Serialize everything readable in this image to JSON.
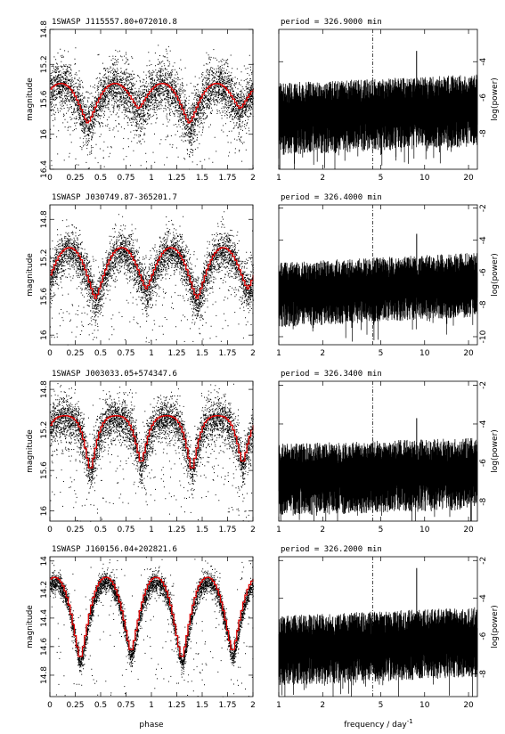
{
  "figure": {
    "bottom_left_xlabel": "phase",
    "bottom_right_xlabel": "frequency / day",
    "bottom_right_xlabel_sup": "-1"
  },
  "chart_data": [
    {
      "type": "scatter",
      "title": "1SWASP J115557.80+072010.8",
      "ylabel": "magnitude",
      "xlim": [
        0,
        2
      ],
      "ylim": [
        16.4,
        14.8
      ],
      "y_inverted": true,
      "x_ticks": [
        "0",
        "0.25",
        "0.5",
        "0.75",
        "1",
        "1.25",
        "1.5",
        "1.75",
        "2"
      ],
      "y_ticks": [
        {
          "v": 14.8,
          "t": "14.8"
        },
        {
          "v": 15.2,
          "t": "15.2"
        },
        {
          "v": 15.6,
          "t": "15.6"
        },
        {
          "v": 16,
          "t": "16"
        },
        {
          "v": 16.4,
          "t": "16.4"
        }
      ],
      "series": [
        {
          "kind": "points",
          "color": "#000000",
          "shape": {
            "baseline": 15.35,
            "depth1": 0.55,
            "depth2": 0.38,
            "width": 0.14,
            "scatter": 0.28,
            "min_phase": 0.375
          }
        },
        {
          "kind": "binned_mean",
          "color": "#e00000",
          "step": 0.02
        }
      ]
    },
    {
      "type": "line",
      "title": "period = 326.9000 min",
      "ylabel": "log(power)",
      "x_scale": "log",
      "xlim": [
        1,
        23
      ],
      "ylim": [
        -10,
        -2.2
      ],
      "x_ticks": [
        {
          "v": 1,
          "t": "1"
        },
        {
          "v": 2,
          "t": "2"
        },
        {
          "v": 5,
          "t": "5"
        },
        {
          "v": 10,
          "t": "10"
        },
        {
          "v": 20,
          "t": "20"
        }
      ],
      "y_ticks": [
        {
          "v": -4,
          "t": "-4"
        },
        {
          "v": -6,
          "t": "-6"
        },
        {
          "v": -8,
          "t": "-8"
        }
      ],
      "marker_frequency": 4.405,
      "peak_frequency": 8.81,
      "peak_power": -3.4,
      "noise": {
        "level": -7.0,
        "spread": 1.3,
        "trend": 0.15
      }
    },
    {
      "type": "scatter",
      "title": "1SWASP J030749.87-365201.7",
      "ylabel": "magnitude",
      "xlim": [
        0,
        2
      ],
      "ylim": [
        16.1,
        14.65
      ],
      "y_inverted": true,
      "x_ticks": [
        "0",
        "0.25",
        "0.5",
        "0.75",
        "1",
        "1.25",
        "1.5",
        "1.75",
        "2"
      ],
      "y_ticks": [
        {
          "v": 14.8,
          "t": "14.8"
        },
        {
          "v": 15.2,
          "t": "15.2"
        },
        {
          "v": 15.6,
          "t": "15.6"
        },
        {
          "v": 16,
          "t": "16"
        }
      ],
      "series": [
        {
          "kind": "points",
          "color": "#000000",
          "shape": {
            "baseline": 15.0,
            "depth1": 0.65,
            "depth2": 0.55,
            "width": 0.14,
            "scatter": 0.22,
            "min_phase": 0.45
          }
        },
        {
          "kind": "binned_mean",
          "color": "#e00000",
          "step": 0.02
        }
      ]
    },
    {
      "type": "line",
      "title": "period = 326.4000 min",
      "ylabel": "log(power)",
      "x_scale": "log",
      "xlim": [
        1,
        23
      ],
      "ylim": [
        -10.5,
        -1.8
      ],
      "x_ticks": [
        {
          "v": 1,
          "t": "1"
        },
        {
          "v": 2,
          "t": "2"
        },
        {
          "v": 5,
          "t": "5"
        },
        {
          "v": 10,
          "t": "10"
        },
        {
          "v": 20,
          "t": "20"
        }
      ],
      "y_ticks": [
        {
          "v": -2,
          "t": "-2"
        },
        {
          "v": -4,
          "t": "-4"
        },
        {
          "v": -6,
          "t": "-6"
        },
        {
          "v": -8,
          "t": "-8"
        },
        {
          "v": -10,
          "t": "-10"
        }
      ],
      "marker_frequency": 4.41,
      "peak_frequency": 8.82,
      "peak_power": -3.6,
      "noise": {
        "level": -7.2,
        "spread": 1.3,
        "trend": 0.2
      }
    },
    {
      "type": "scatter",
      "title": "1SWASP J003033.05+574347.6",
      "ylabel": "magnitude",
      "xlim": [
        0,
        2
      ],
      "ylim": [
        16.1,
        14.72
      ],
      "y_inverted": true,
      "x_ticks": [
        "0",
        "0.25",
        "0.5",
        "0.75",
        "1",
        "1.25",
        "1.5",
        "1.75",
        "2"
      ],
      "y_ticks": [
        {
          "v": 14.8,
          "t": "14.8"
        },
        {
          "v": 15.2,
          "t": "15.2"
        },
        {
          "v": 15.6,
          "t": "15.6"
        },
        {
          "v": 16,
          "t": "16"
        }
      ],
      "series": [
        {
          "kind": "points",
          "color": "#000000",
          "shape": {
            "baseline": 15.08,
            "depth1": 0.55,
            "depth2": 0.48,
            "width": 0.08,
            "scatter": 0.2,
            "min_phase": 0.4
          }
        },
        {
          "kind": "binned_mean",
          "color": "#e00000",
          "step": 0.02
        }
      ]
    },
    {
      "type": "line",
      "title": "period = 326.3400 min",
      "ylabel": "log(power)",
      "x_scale": "log",
      "xlim": [
        1,
        23
      ],
      "ylim": [
        -9,
        -1.8
      ],
      "x_ticks": [
        {
          "v": 1,
          "t": "1"
        },
        {
          "v": 2,
          "t": "2"
        },
        {
          "v": 5,
          "t": "5"
        },
        {
          "v": 10,
          "t": "10"
        },
        {
          "v": 20,
          "t": "20"
        }
      ],
      "y_ticks": [
        {
          "v": -2,
          "t": "-2"
        },
        {
          "v": -4,
          "t": "-4"
        },
        {
          "v": -6,
          "t": "-6"
        },
        {
          "v": -8,
          "t": "-8"
        }
      ],
      "marker_frequency": 4.41,
      "peak_frequency": 8.82,
      "peak_power": -3.7,
      "noise": {
        "level": -6.7,
        "spread": 1.2,
        "trend": 0.1
      }
    },
    {
      "type": "scatter",
      "title": "1SWASP J160156.04+202821.6",
      "ylabel": "magnitude",
      "xlim": [
        0,
        2
      ],
      "ylim": [
        14.95,
        13.97
      ],
      "y_inverted": true,
      "x_ticks": [
        "0",
        "0.25",
        "0.5",
        "0.75",
        "1",
        "1.25",
        "1.5",
        "1.75",
        "2"
      ],
      "y_ticks": [
        {
          "v": 14,
          "t": "14"
        },
        {
          "v": 14.2,
          "t": "14.2"
        },
        {
          "v": 14.4,
          "t": "14.4"
        },
        {
          "v": 14.6,
          "t": "14.6"
        },
        {
          "v": 14.8,
          "t": "14.8"
        }
      ],
      "series": [
        {
          "kind": "points",
          "color": "#000000",
          "shape": {
            "baseline": 14.07,
            "depth1": 0.65,
            "depth2": 0.6,
            "width": 0.12,
            "scatter": 0.07,
            "min_phase": 0.3
          }
        },
        {
          "kind": "binned_mean",
          "color": "#e00000",
          "step": 0.02
        }
      ]
    },
    {
      "type": "line",
      "title": "period = 326.2000 min",
      "ylabel": "log(power)",
      "x_scale": "log",
      "xlim": [
        1,
        23
      ],
      "ylim": [
        -9.2,
        -1.8
      ],
      "x_ticks": [
        {
          "v": 1,
          "t": "1"
        },
        {
          "v": 2,
          "t": "2"
        },
        {
          "v": 5,
          "t": "5"
        },
        {
          "v": 10,
          "t": "10"
        },
        {
          "v": 20,
          "t": "20"
        }
      ],
      "y_ticks": [
        {
          "v": -2,
          "t": "-2"
        },
        {
          "v": -4,
          "t": "-4"
        },
        {
          "v": -6,
          "t": "-6"
        },
        {
          "v": -8,
          "t": "-8"
        }
      ],
      "marker_frequency": 4.41,
      "peak_frequency": 8.82,
      "peak_power": -2.4,
      "noise": {
        "level": -6.6,
        "spread": 1.2,
        "trend": 0.15
      }
    }
  ]
}
